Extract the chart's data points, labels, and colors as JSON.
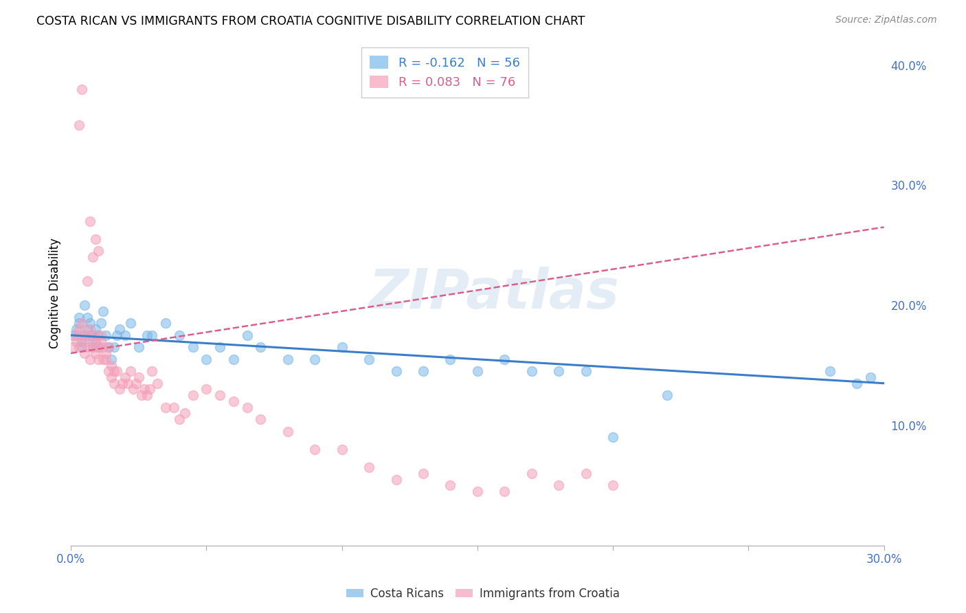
{
  "title": "COSTA RICAN VS IMMIGRANTS FROM CROATIA COGNITIVE DISABILITY CORRELATION CHART",
  "source": "Source: ZipAtlas.com",
  "ylabel": "Cognitive Disability",
  "watermark": "ZIPatlas",
  "xlim": [
    0.0,
    0.3
  ],
  "ylim": [
    0.0,
    0.42
  ],
  "xticks": [
    0.0,
    0.05,
    0.1,
    0.15,
    0.2,
    0.25,
    0.3
  ],
  "xtick_labels": [
    "0.0%",
    "",
    "",
    "",
    "",
    "",
    "30.0%"
  ],
  "yticks_right": [
    0.1,
    0.2,
    0.3,
    0.4
  ],
  "ytick_labels_right": [
    "10.0%",
    "20.0%",
    "30.0%",
    "40.0%"
  ],
  "grid_color": "#cccccc",
  "blue_color": "#7ab8e8",
  "pink_color": "#f4a0b8",
  "blue_line_color": "#3a7dc9",
  "pink_line_color": "#d95f8a",
  "axis_label_color": "#4472c4",
  "legend_R_blue": "-0.162",
  "legend_N_blue": "56",
  "legend_R_pink": "0.083",
  "legend_N_pink": "76",
  "blue_scatter_x": [
    0.001,
    0.002,
    0.003,
    0.003,
    0.004,
    0.004,
    0.005,
    0.005,
    0.006,
    0.006,
    0.007,
    0.007,
    0.008,
    0.008,
    0.009,
    0.009,
    0.01,
    0.01,
    0.011,
    0.012,
    0.013,
    0.014,
    0.015,
    0.016,
    0.017,
    0.018,
    0.02,
    0.022,
    0.025,
    0.028,
    0.03,
    0.035,
    0.04,
    0.045,
    0.05,
    0.055,
    0.06,
    0.065,
    0.07,
    0.08,
    0.09,
    0.1,
    0.11,
    0.12,
    0.13,
    0.14,
    0.15,
    0.16,
    0.17,
    0.18,
    0.19,
    0.2,
    0.22,
    0.28,
    0.29,
    0.295
  ],
  "blue_scatter_y": [
    0.175,
    0.18,
    0.185,
    0.19,
    0.17,
    0.165,
    0.175,
    0.2,
    0.18,
    0.19,
    0.175,
    0.185,
    0.165,
    0.175,
    0.18,
    0.17,
    0.165,
    0.175,
    0.185,
    0.195,
    0.175,
    0.165,
    0.155,
    0.165,
    0.175,
    0.18,
    0.175,
    0.185,
    0.165,
    0.175,
    0.175,
    0.185,
    0.175,
    0.165,
    0.155,
    0.165,
    0.155,
    0.175,
    0.165,
    0.155,
    0.155,
    0.165,
    0.155,
    0.145,
    0.145,
    0.155,
    0.145,
    0.155,
    0.145,
    0.145,
    0.145,
    0.09,
    0.125,
    0.145,
    0.135,
    0.14
  ],
  "pink_scatter_x": [
    0.001,
    0.002,
    0.002,
    0.003,
    0.003,
    0.004,
    0.004,
    0.005,
    0.005,
    0.006,
    0.006,
    0.007,
    0.007,
    0.008,
    0.008,
    0.009,
    0.009,
    0.01,
    0.01,
    0.011,
    0.011,
    0.012,
    0.012,
    0.013,
    0.013,
    0.014,
    0.014,
    0.015,
    0.015,
    0.016,
    0.016,
    0.017,
    0.018,
    0.019,
    0.02,
    0.021,
    0.022,
    0.023,
    0.024,
    0.025,
    0.026,
    0.027,
    0.028,
    0.029,
    0.03,
    0.032,
    0.035,
    0.038,
    0.04,
    0.042,
    0.045,
    0.05,
    0.055,
    0.06,
    0.065,
    0.07,
    0.08,
    0.09,
    0.1,
    0.11,
    0.12,
    0.13,
    0.14,
    0.15,
    0.16,
    0.17,
    0.18,
    0.19,
    0.2,
    0.006,
    0.007,
    0.008,
    0.009,
    0.01,
    0.003,
    0.004
  ],
  "pink_scatter_y": [
    0.165,
    0.17,
    0.175,
    0.165,
    0.18,
    0.175,
    0.185,
    0.17,
    0.16,
    0.175,
    0.165,
    0.155,
    0.18,
    0.17,
    0.165,
    0.175,
    0.16,
    0.165,
    0.155,
    0.17,
    0.175,
    0.165,
    0.155,
    0.16,
    0.155,
    0.165,
    0.145,
    0.15,
    0.14,
    0.145,
    0.135,
    0.145,
    0.13,
    0.135,
    0.14,
    0.135,
    0.145,
    0.13,
    0.135,
    0.14,
    0.125,
    0.13,
    0.125,
    0.13,
    0.145,
    0.135,
    0.115,
    0.115,
    0.105,
    0.11,
    0.125,
    0.13,
    0.125,
    0.12,
    0.115,
    0.105,
    0.095,
    0.08,
    0.08,
    0.065,
    0.055,
    0.06,
    0.05,
    0.045,
    0.045,
    0.06,
    0.05,
    0.06,
    0.05,
    0.22,
    0.27,
    0.24,
    0.255,
    0.245,
    0.35,
    0.38
  ]
}
